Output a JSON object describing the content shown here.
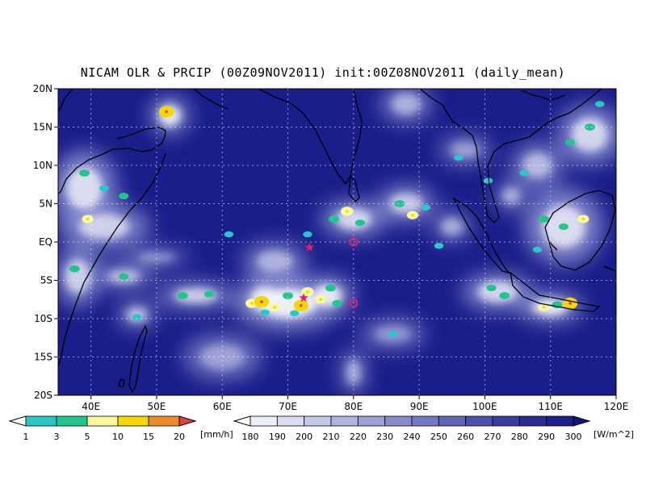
{
  "chart_data": {
    "type": "heatmap",
    "title": "NICAM OLR & PRCIP (00Z09NOV2011) init:00Z08NOV2011 (daily_mean)",
    "x_range": [
      35,
      120
    ],
    "y_range": [
      -20,
      20
    ],
    "x_ticks": [
      {
        "value": 40,
        "label": "40E"
      },
      {
        "value": 50,
        "label": "50E"
      },
      {
        "value": 60,
        "label": "60E"
      },
      {
        "value": 70,
        "label": "70E"
      },
      {
        "value": 80,
        "label": "80E"
      },
      {
        "value": 90,
        "label": "90E"
      },
      {
        "value": 100,
        "label": "100E"
      },
      {
        "value": 110,
        "label": "110E"
      },
      {
        "value": 120,
        "label": "120E"
      }
    ],
    "y_ticks": [
      {
        "value": 20,
        "label": "20N"
      },
      {
        "value": 15,
        "label": "15N"
      },
      {
        "value": 10,
        "label": "10N"
      },
      {
        "value": 5,
        "label": "5N"
      },
      {
        "value": 0,
        "label": "EQ"
      },
      {
        "value": -5,
        "label": "5S"
      },
      {
        "value": -10,
        "label": "10S"
      },
      {
        "value": -15,
        "label": "15S"
      },
      {
        "value": -20,
        "label": "20S"
      }
    ],
    "grid": true,
    "precip_colorbar": {
      "unit": "[mm/h]",
      "levels": [
        "1",
        "3",
        "5",
        "10",
        "15",
        "20"
      ],
      "colors": [
        "#ffffff",
        "#28c8c8",
        "#1ec88c",
        "#f8f8a0",
        "#f5d800",
        "#f08c28",
        "#e63c46"
      ]
    },
    "olr_colorbar": {
      "unit": "[W/m^2]",
      "levels": [
        "180",
        "190",
        "200",
        "210",
        "220",
        "230",
        "240",
        "250",
        "260",
        "270",
        "280",
        "290",
        "300"
      ],
      "colors": [
        "#ffffff",
        "#eceef8",
        "#d8dcf0",
        "#c4c8e8",
        "#b0b4e0",
        "#9ca0d6",
        "#888ccc",
        "#7478c2",
        "#6064b8",
        "#4c50ae",
        "#383ca2",
        "#282c96",
        "#1c2088",
        "#12167a"
      ]
    },
    "cloud_features": [
      {
        "lon": 52.0,
        "lat": 16.5,
        "rx": 3.0,
        "ry": 2.5,
        "i": 0.9
      },
      {
        "lon": 39.0,
        "lat": 7.0,
        "rx": 5.0,
        "ry": 5.0,
        "i": 0.8
      },
      {
        "lon": 42.0,
        "lat": 2.0,
        "rx": 7.0,
        "ry": 3.0,
        "i": 0.7
      },
      {
        "lon": 38.0,
        "lat": -4.5,
        "rx": 3.5,
        "ry": 4.0,
        "i": 0.7
      },
      {
        "lon": 45.0,
        "lat": -4.5,
        "rx": 4.5,
        "ry": 1.6,
        "i": 0.6
      },
      {
        "lon": 50.0,
        "lat": -2.0,
        "rx": 5.0,
        "ry": 1.2,
        "i": 0.4
      },
      {
        "lon": 47.0,
        "lat": -9.5,
        "rx": 3.0,
        "ry": 1.8,
        "i": 0.6
      },
      {
        "lon": 56.0,
        "lat": -7.0,
        "rx": 6.0,
        "ry": 1.8,
        "i": 0.7
      },
      {
        "lon": 70.0,
        "lat": -8.0,
        "rx": 8.0,
        "ry": 3.5,
        "i": 0.95
      },
      {
        "lon": 66.5,
        "lat": -7.5,
        "rx": 4.0,
        "ry": 3.0,
        "i": 0.9
      },
      {
        "lon": 76.0,
        "lat": -7.0,
        "rx": 4.0,
        "ry": 2.6,
        "i": 0.9
      },
      {
        "lon": 68.0,
        "lat": -2.5,
        "rx": 5.0,
        "ry": 2.5,
        "i": 0.5
      },
      {
        "lon": 80.0,
        "lat": 3.0,
        "rx": 5.0,
        "ry": 2.5,
        "i": 0.75
      },
      {
        "lon": 88.0,
        "lat": 5.0,
        "rx": 4.5,
        "ry": 2.5,
        "i": 0.65
      },
      {
        "lon": 95.0,
        "lat": 2.0,
        "rx": 3.0,
        "ry": 2.0,
        "i": 0.5
      },
      {
        "lon": 102.0,
        "lat": -6.5,
        "rx": 5.5,
        "ry": 2.5,
        "i": 0.75
      },
      {
        "lon": 110.0,
        "lat": -8.5,
        "rx": 5.0,
        "ry": 2.0,
        "i": 0.9
      },
      {
        "lon": 112.0,
        "lat": 2.0,
        "rx": 6.0,
        "ry": 5.0,
        "i": 0.8
      },
      {
        "lon": 116.0,
        "lat": 14.0,
        "rx": 5.0,
        "ry": 4.0,
        "i": 0.75
      },
      {
        "lon": 108.0,
        "lat": 10.0,
        "rx": 4.0,
        "ry": 3.0,
        "i": 0.55
      },
      {
        "lon": 104.0,
        "lat": 6.0,
        "rx": 2.5,
        "ry": 2.0,
        "i": 0.5
      },
      {
        "lon": 88.0,
        "lat": 18.0,
        "rx": 4.0,
        "ry": 2.5,
        "i": 0.5
      },
      {
        "lon": 97.0,
        "lat": 12.0,
        "rx": 4.0,
        "ry": 2.0,
        "i": 0.4
      },
      {
        "lon": 80.0,
        "lat": -17.0,
        "rx": 2.0,
        "ry": 3.0,
        "i": 0.5
      },
      {
        "lon": 60.0,
        "lat": -15.0,
        "rx": 6.0,
        "ry": 3.0,
        "i": 0.4
      },
      {
        "lon": 86.0,
        "lat": -12.0,
        "rx": 5.0,
        "ry": 2.0,
        "i": 0.35
      }
    ],
    "precip_cells": [
      {
        "lon": 51.5,
        "lat": 17.0,
        "v": 12
      },
      {
        "lon": 39.0,
        "lat": 9.0,
        "v": 4
      },
      {
        "lon": 42.0,
        "lat": 7.0,
        "v": 2
      },
      {
        "lon": 45.0,
        "lat": 6.0,
        "v": 3
      },
      {
        "lon": 39.5,
        "lat": 3.0,
        "v": 6
      },
      {
        "lon": 37.5,
        "lat": -3.5,
        "v": 4
      },
      {
        "lon": 45.0,
        "lat": -4.5,
        "v": 3
      },
      {
        "lon": 47.0,
        "lat": -9.8,
        "v": 2
      },
      {
        "lon": 54.0,
        "lat": -7.0,
        "v": 4
      },
      {
        "lon": 58.0,
        "lat": -6.8,
        "v": 3
      },
      {
        "lon": 64.5,
        "lat": -8.0,
        "v": 8
      },
      {
        "lon": 66.0,
        "lat": -7.8,
        "v": 12
      },
      {
        "lon": 68.0,
        "lat": -8.5,
        "v": 6
      },
      {
        "lon": 70.0,
        "lat": -7.0,
        "v": 4
      },
      {
        "lon": 72.0,
        "lat": -8.3,
        "v": 12
      },
      {
        "lon": 73.0,
        "lat": -6.5,
        "v": 8
      },
      {
        "lon": 75.0,
        "lat": -7.5,
        "v": 6
      },
      {
        "lon": 76.5,
        "lat": -6.0,
        "v": 4
      },
      {
        "lon": 77.5,
        "lat": -8.0,
        "v": 3
      },
      {
        "lon": 66.5,
        "lat": -9.2,
        "v": 2
      },
      {
        "lon": 71.0,
        "lat": -9.3,
        "v": 2
      },
      {
        "lon": 77.0,
        "lat": 3.0,
        "v": 4
      },
      {
        "lon": 79.0,
        "lat": 4.0,
        "v": 8
      },
      {
        "lon": 81.0,
        "lat": 2.5,
        "v": 3
      },
      {
        "lon": 87.0,
        "lat": 5.0,
        "v": 4
      },
      {
        "lon": 89.0,
        "lat": 3.5,
        "v": 6
      },
      {
        "lon": 91.0,
        "lat": 4.5,
        "v": 2
      },
      {
        "lon": 93.0,
        "lat": -0.5,
        "v": 2
      },
      {
        "lon": 101.0,
        "lat": -6.0,
        "v": 3
      },
      {
        "lon": 103.0,
        "lat": -7.0,
        "v": 4
      },
      {
        "lon": 109.0,
        "lat": -8.5,
        "v": 6
      },
      {
        "lon": 111.0,
        "lat": -8.2,
        "v": 4
      },
      {
        "lon": 113.0,
        "lat": -8.0,
        "v": 12
      },
      {
        "lon": 109.0,
        "lat": 3.0,
        "v": 4
      },
      {
        "lon": 112.0,
        "lat": 2.0,
        "v": 3
      },
      {
        "lon": 115.0,
        "lat": 3.0,
        "v": 6
      },
      {
        "lon": 108.0,
        "lat": -1.0,
        "v": 2
      },
      {
        "lon": 116.0,
        "lat": 15.0,
        "v": 4
      },
      {
        "lon": 113.0,
        "lat": 13.0,
        "v": 3
      },
      {
        "lon": 106.0,
        "lat": 9.0,
        "v": 2
      },
      {
        "lon": 117.5,
        "lat": 18.0,
        "v": 2
      },
      {
        "lon": 96.0,
        "lat": 11.0,
        "v": 2
      },
      {
        "lon": 100.5,
        "lat": 8.0,
        "v": 2
      },
      {
        "lon": 86.0,
        "lat": -12.0,
        "v": 2
      },
      {
        "lon": 61.0,
        "lat": 1.0,
        "v": 2
      },
      {
        "lon": 73.0,
        "lat": 1.0,
        "v": 2
      }
    ],
    "markers": [
      {
        "type": "circle",
        "lon": 80.0,
        "lat": 0.0,
        "color": "#e0206e"
      },
      {
        "type": "circle",
        "lon": 80.0,
        "lat": -8.0,
        "color": "#e0206e"
      },
      {
        "type": "star",
        "lon": 73.3,
        "lat": -0.7,
        "color": "#e0206e"
      },
      {
        "type": "star",
        "lon": 72.4,
        "lat": -7.3,
        "color": "#e0206e"
      }
    ]
  }
}
